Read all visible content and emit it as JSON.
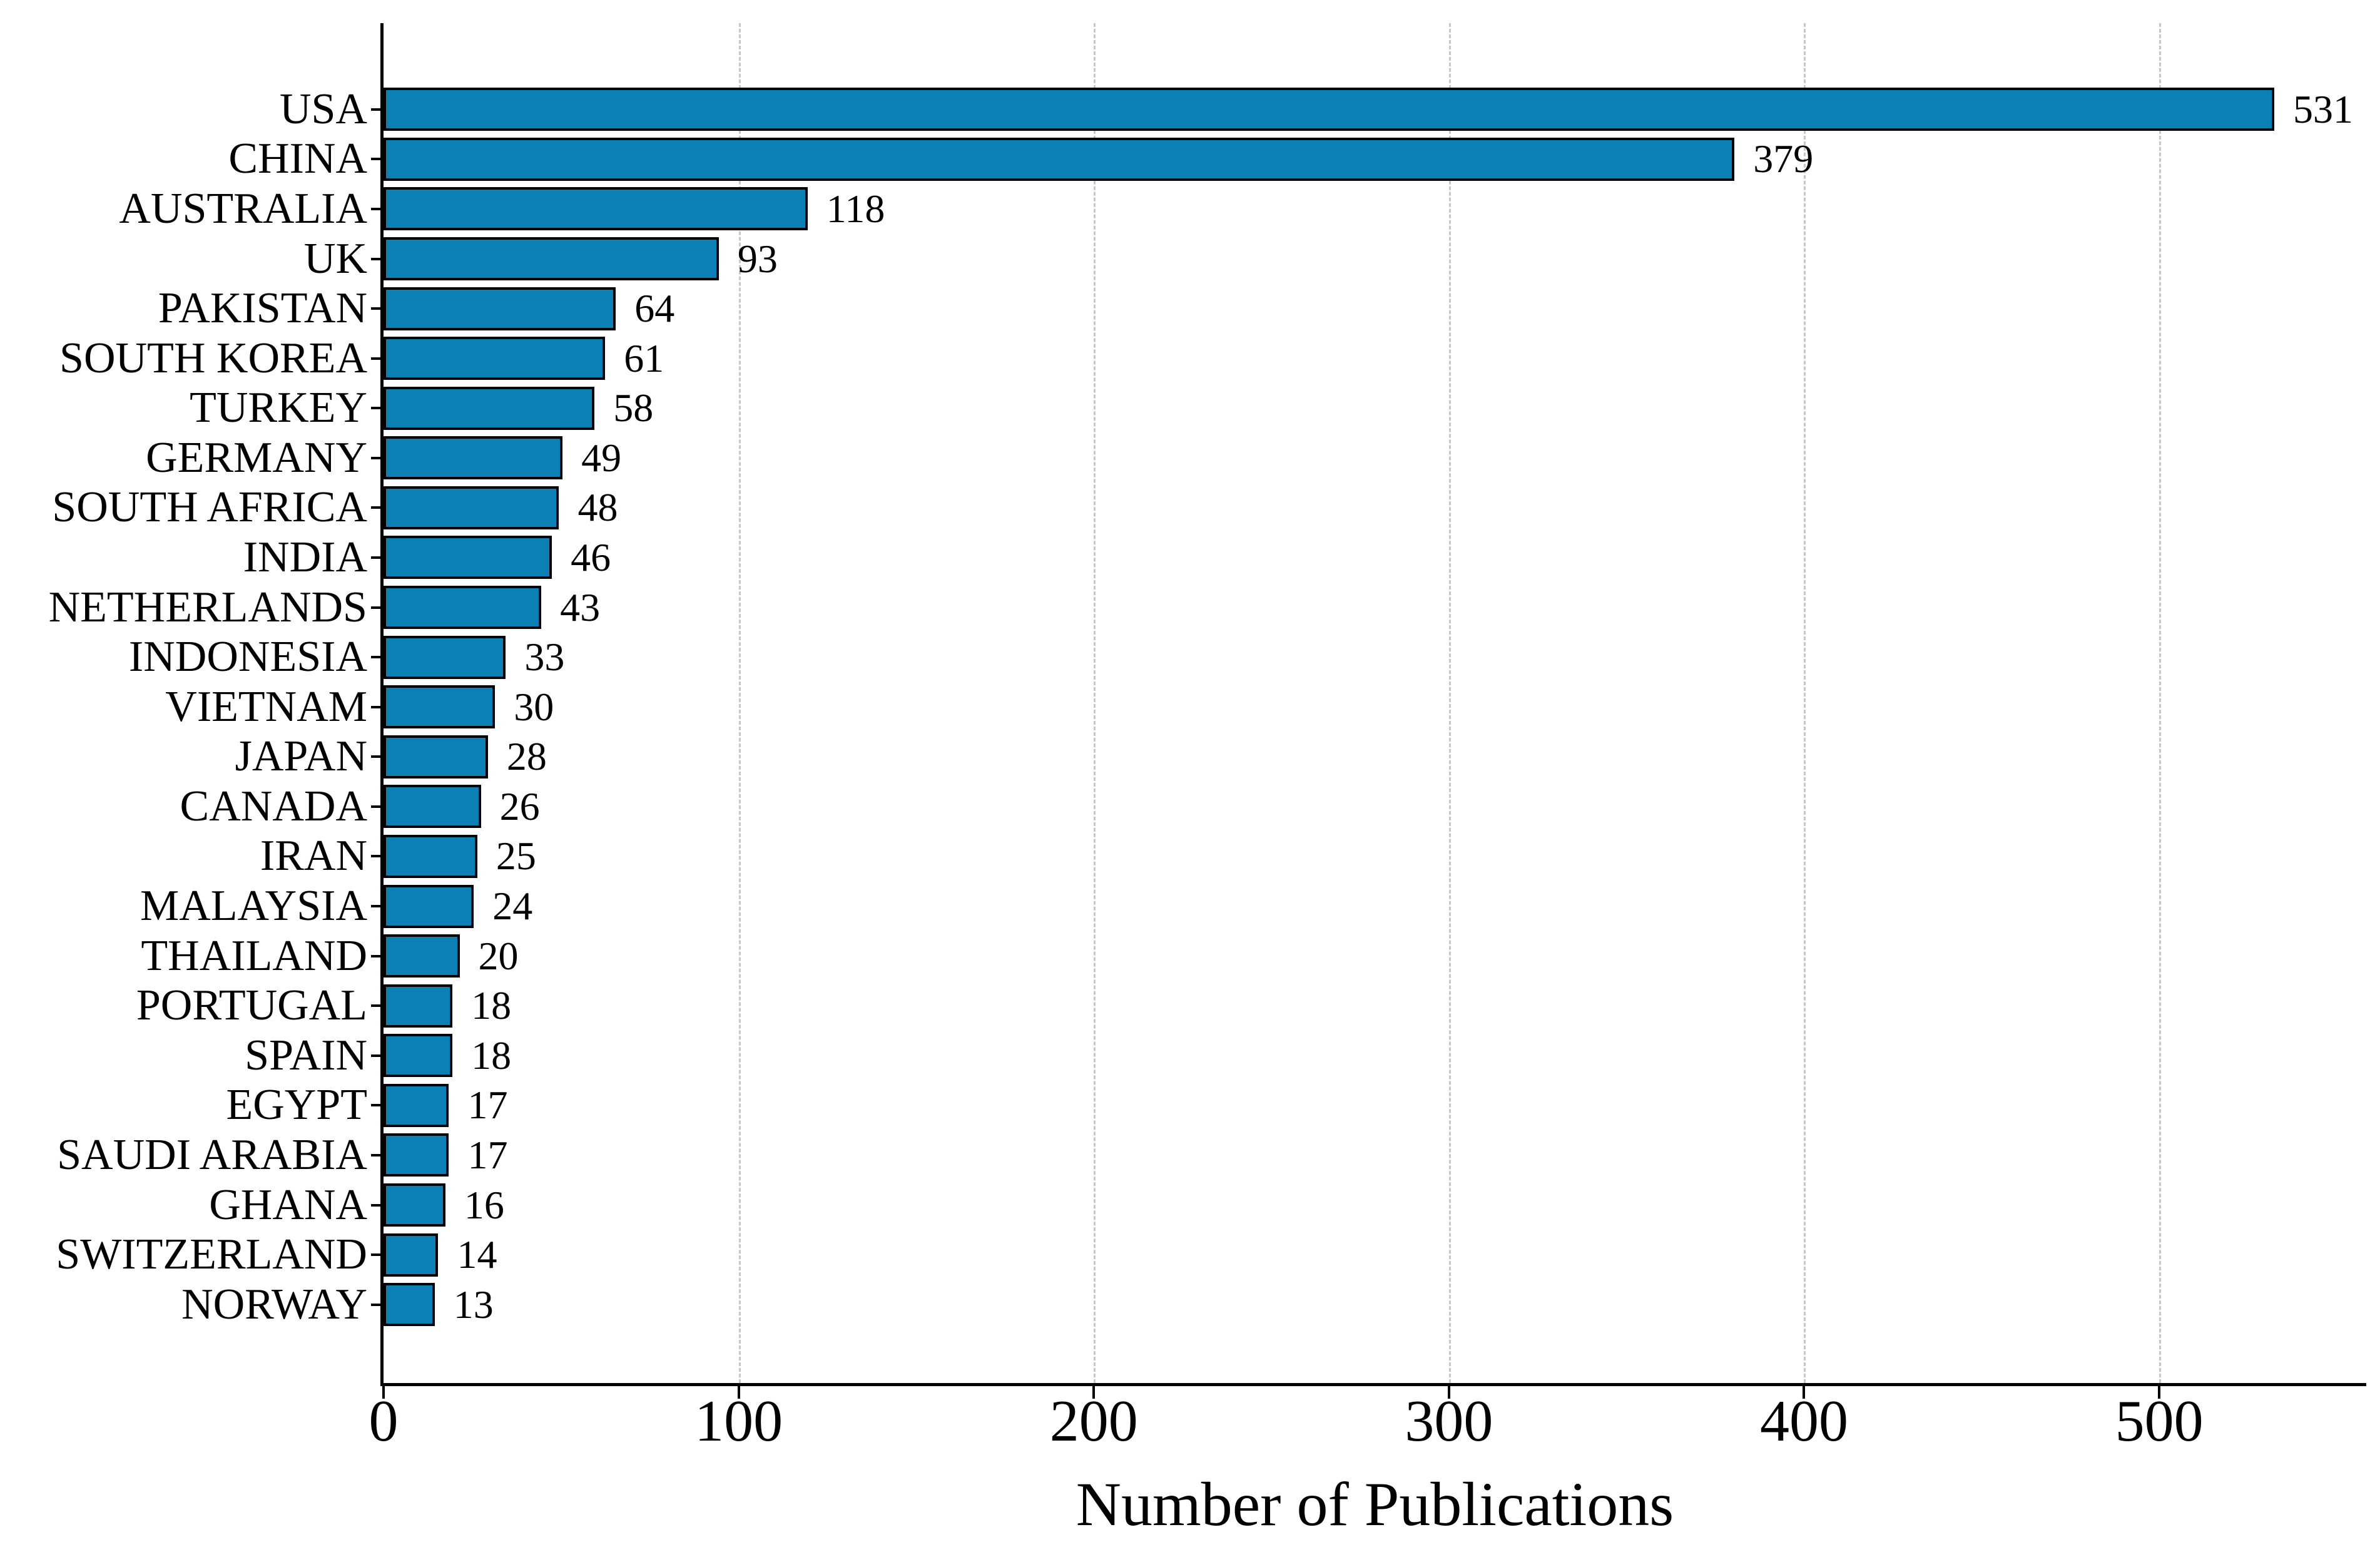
{
  "chart_data": {
    "type": "bar",
    "orientation": "horizontal",
    "title": "",
    "xlabel": "Number of Publications",
    "ylabel": "",
    "categories": [
      "USA",
      "CHINA",
      "AUSTRALIA",
      "UK",
      "PAKISTAN",
      "SOUTH KOREA",
      "TURKEY",
      "GERMANY",
      "SOUTH AFRICA",
      "INDIA",
      "NETHERLANDS",
      "INDONESIA",
      "VIETNAM",
      "JAPAN",
      "CANADA",
      "IRAN",
      "MALAYSIA",
      "THAILAND",
      "PORTUGAL",
      "SPAIN",
      "EGYPT",
      "SAUDI ARABIA",
      "GHANA",
      "SWITZERLAND",
      "NORWAY"
    ],
    "values": [
      531,
      379,
      118,
      93,
      64,
      61,
      58,
      49,
      48,
      46,
      43,
      33,
      30,
      28,
      26,
      25,
      24,
      20,
      18,
      18,
      17,
      17,
      16,
      14,
      13
    ],
    "value_labels_shown": true,
    "x_ticks": [
      0,
      100,
      200,
      300,
      400,
      500
    ],
    "xlim": [
      0,
      558.3
    ],
    "grid": "vertical dashed gridlines at x ticks",
    "legend": "none",
    "colors": {
      "bar_fill": "#0b80b5",
      "bar_edge": "#000000",
      "gridline": "#c7c7c7",
      "axis": "#000000",
      "text": "#000000",
      "background": "#ffffff"
    }
  }
}
